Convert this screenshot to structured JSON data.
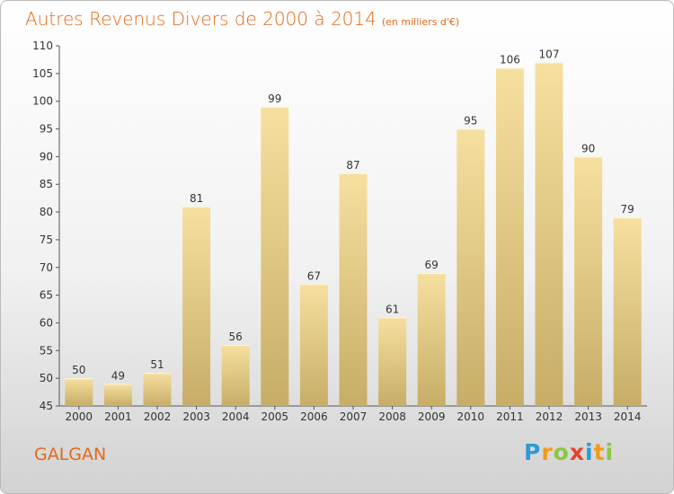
{
  "title": "Autres Revenus Divers de 2000 à 2014",
  "unit_note": "(en milliers d'€)",
  "commune": "GALGAN",
  "logo": {
    "letters": [
      {
        "ch": "P",
        "color": "#2d9bd6"
      },
      {
        "ch": "r",
        "color": "#f39a1c"
      },
      {
        "ch": "o",
        "color": "#8dc63f"
      },
      {
        "ch": "x",
        "color": "#e8412c"
      },
      {
        "ch": "i",
        "color": "#2d9bd6"
      },
      {
        "ch": "t",
        "color": "#f39a1c"
      },
      {
        "ch": "i",
        "color": "#8dc63f"
      }
    ]
  },
  "chart_data": {
    "type": "bar",
    "categories": [
      "2000",
      "2001",
      "2002",
      "2003",
      "2004",
      "2005",
      "2006",
      "2007",
      "2008",
      "2009",
      "2010",
      "2011",
      "2012",
      "2013",
      "2014"
    ],
    "values": [
      50,
      49,
      51,
      81,
      56,
      99,
      67,
      87,
      61,
      69,
      95,
      106,
      107,
      90,
      79
    ],
    "ylim": [
      45,
      110
    ],
    "yticks": [
      45,
      50,
      55,
      60,
      65,
      70,
      75,
      80,
      85,
      90,
      95,
      100,
      105,
      110
    ],
    "grid": false,
    "bar_color_light": "#f6e0a0",
    "bar_color_dark": "#c7ad66"
  }
}
